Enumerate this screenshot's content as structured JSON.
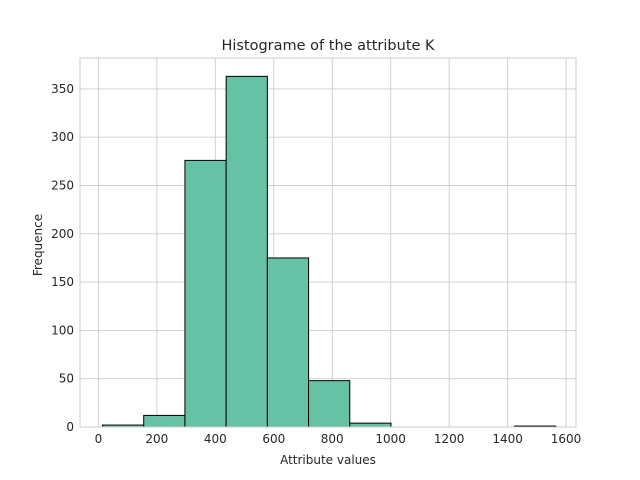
{
  "chart_data": {
    "type": "histogram",
    "title": "Histograme of the attribute K",
    "xlabel": "Attribute values",
    "ylabel": "Frequence",
    "xlim": [
      -63,
      1634
    ],
    "ylim": [
      0,
      382
    ],
    "xticks": [
      0,
      200,
      400,
      600,
      800,
      1000,
      1200,
      1400,
      1600
    ],
    "yticks": [
      0,
      50,
      100,
      150,
      200,
      250,
      300,
      350
    ],
    "grid": true,
    "bin_edges": [
      14,
      155,
      296,
      437,
      578,
      719,
      860,
      1001,
      1142,
      1283,
      1424,
      1565
    ],
    "values": [
      2,
      12,
      276,
      363,
      175,
      48,
      4,
      0,
      0,
      0,
      1
    ],
    "bar_color": "#66c2a5",
    "edge_color": "#000000",
    "grid_color": "#cccccc"
  }
}
